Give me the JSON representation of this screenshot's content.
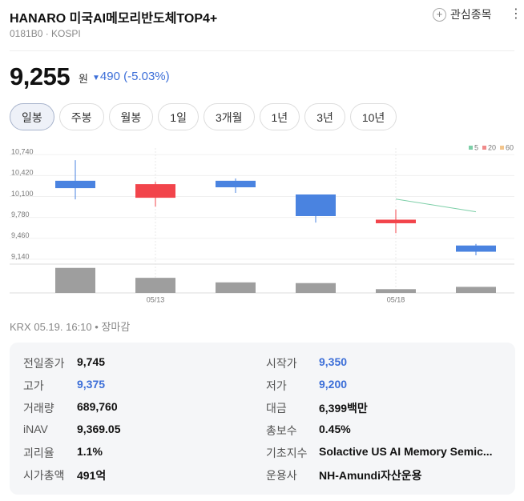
{
  "header": {
    "title": "HANARO 미국AI메모리반도체TOP4+",
    "code": "0181B0",
    "market": "KOSPI",
    "watch_button": "관심종목"
  },
  "price": {
    "value": "9,255",
    "unit": "원",
    "change": "490",
    "change_rate": "(-5.03%)",
    "color": "#3d6fd8"
  },
  "tabs": [
    "일봉",
    "주봉",
    "월봉",
    "1일",
    "3개월",
    "1년",
    "3년",
    "10년"
  ],
  "chart_data": {
    "type": "candlestick",
    "categories": [
      null,
      "05/13",
      null,
      null,
      "05/18",
      null
    ],
    "open": [
      10340,
      10080,
      10340,
      10130,
      9690,
      9350
    ],
    "high": [
      10655,
      10325,
      10375,
      10130,
      9900,
      9375
    ],
    "low": [
      10055,
      9945,
      10155,
      9700,
      9540,
      9200
    ],
    "close": [
      10227,
      10288,
      10240,
      9800,
      9745,
      9255
    ],
    "up_color": "#f2444b",
    "down_color": "#4a83e0",
    "ylim": [
      9090,
      10840
    ],
    "yticks": [
      {
        "value": 10740,
        "label": "10,740"
      },
      {
        "value": 10420,
        "label": "10,420"
      },
      {
        "value": 10100,
        "label": "10,100"
      },
      {
        "value": 9780,
        "label": "9,780"
      },
      {
        "value": 9460,
        "label": "9,460"
      },
      {
        "value": 9140,
        "label": "9,140"
      }
    ],
    "grid": true,
    "moving_averages": [
      {
        "name": "5",
        "color": "#7dcfa8",
        "values": [
          null,
          null,
          null,
          null,
          10060,
          9866
        ]
      },
      {
        "name": "20",
        "color": "#f08a8a",
        "values": [
          null,
          null,
          null,
          null,
          null,
          null
        ]
      },
      {
        "name": "60",
        "color": "#f3c58c",
        "values": [
          null,
          null,
          null,
          null,
          null,
          null
        ]
      }
    ],
    "volume": {
      "color": "#9e9e9e",
      "values": [
        2850000,
        1720000,
        1200000,
        1120000,
        430000,
        689760
      ],
      "ylim": [
        0,
        3100000
      ]
    }
  },
  "status": {
    "exchange": "KRX",
    "time": "05.19. 16:10",
    "state": "장마감"
  },
  "info": [
    {
      "label": "전일종가",
      "value": "9,745"
    },
    {
      "label": "시작가",
      "value": "9,350",
      "color": "#3d6fd8"
    },
    {
      "label": "고가",
      "value": "9,375",
      "color": "#3d6fd8"
    },
    {
      "label": "저가",
      "value": "9,200",
      "color": "#3d6fd8"
    },
    {
      "label": "거래량",
      "value": "689,760"
    },
    {
      "label": "대금",
      "value": "6,399백만"
    },
    {
      "label": "iNAV",
      "value": "9,369.05"
    },
    {
      "label": "총보수",
      "value": "0.45%"
    },
    {
      "label": "괴리율",
      "value": "1.1%"
    },
    {
      "label": "기초지수",
      "value": "Solactive US AI Memory Semic..."
    },
    {
      "label": "시가총액",
      "value": "491억"
    },
    {
      "label": "운용사",
      "value": "NH-Amundi자산운용"
    }
  ]
}
